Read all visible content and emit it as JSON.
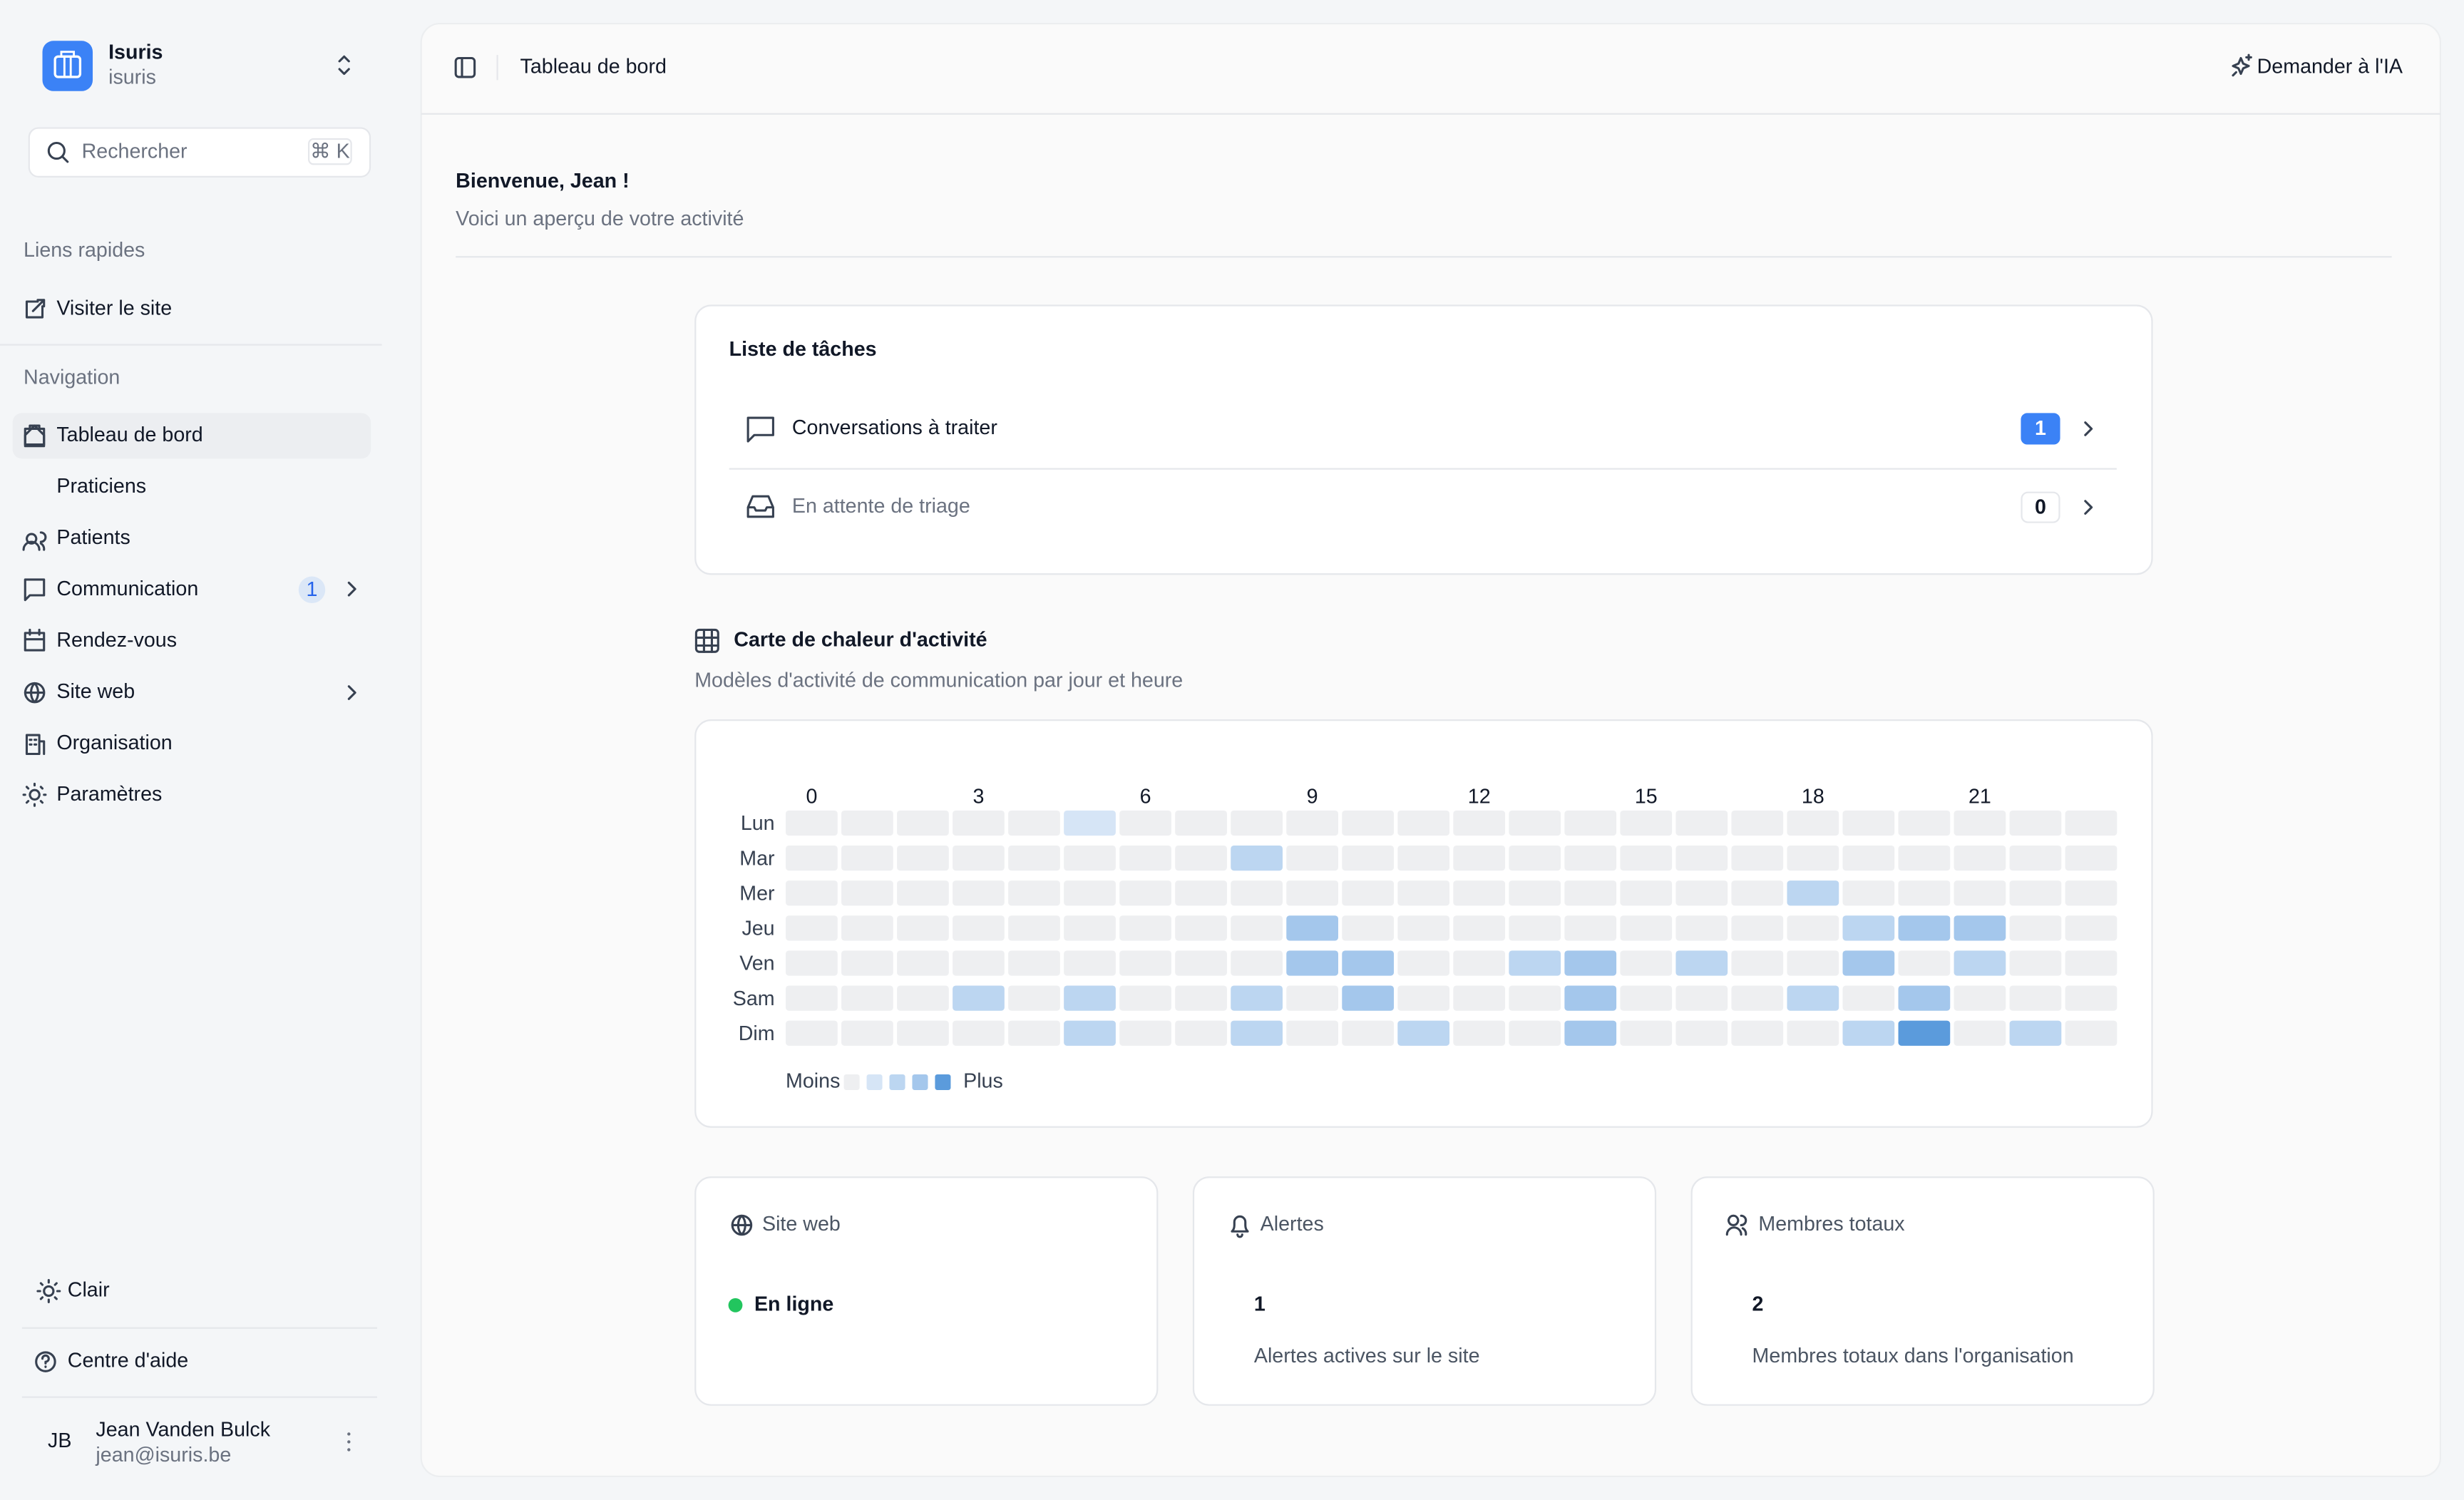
{
  "sidebar": {
    "org_name": "Isuris",
    "org_slug": "isuris",
    "search_placeholder": "Rechercher",
    "search_shortcut": "⌘ K",
    "quick_links_title": "Liens rapides",
    "quick_links": [
      "Visiter le site"
    ],
    "nav_title": "Navigation",
    "nav": [
      {
        "label": "Tableau de bord"
      },
      {
        "label": "Praticiens"
      },
      {
        "label": "Patients"
      },
      {
        "label": "Communication",
        "badge": 1
      },
      {
        "label": "Rendez-vous"
      },
      {
        "label": "Site web"
      },
      {
        "label": "Organisation"
      },
      {
        "label": "Paramètres"
      }
    ],
    "theme": "Clair",
    "help": "Centre d'aide",
    "user": {
      "initials": "JB",
      "name": "Jean Vanden Bulck",
      "email": "jean@isuris.be"
    }
  },
  "header": {
    "breadcrumb": "Tableau de bord",
    "ask_ai": "Demander à l'IA"
  },
  "welcome": {
    "title": "Bienvenue, Jean !",
    "subtitle": "Voici un aperçu de votre activité"
  },
  "tasks": {
    "title": "Liste de tâches",
    "items": [
      {
        "label": "Conversations à traiter",
        "count": 1
      },
      {
        "label": "En attente de triage",
        "count": 0
      }
    ]
  },
  "heatmap": {
    "title": "Carte de chaleur d'activité",
    "subtitle": "Modèles d'activité de communication par jour et heure",
    "hours": [
      0,
      3,
      6,
      9,
      12,
      15,
      18,
      21
    ],
    "days": [
      "Lun",
      "Mar",
      "Mer",
      "Jeu",
      "Ven",
      "Sam",
      "Dim"
    ],
    "colors": [
      "#eeeff1",
      "#d6e5f6",
      "#bcd6f1",
      "#a4c7ec",
      "#5b9bdc"
    ],
    "levels": [
      [
        0,
        0,
        0,
        0,
        0,
        1,
        0,
        0,
        0,
        0,
        0,
        0,
        0,
        0,
        0,
        0,
        0,
        0,
        0,
        0,
        0,
        0,
        0,
        0
      ],
      [
        0,
        0,
        0,
        0,
        0,
        0,
        0,
        0,
        2,
        0,
        0,
        0,
        0,
        0,
        0,
        0,
        0,
        0,
        0,
        0,
        0,
        0,
        0,
        0
      ],
      [
        0,
        0,
        0,
        0,
        0,
        0,
        0,
        0,
        0,
        0,
        0,
        0,
        0,
        0,
        0,
        0,
        0,
        0,
        2,
        0,
        0,
        0,
        0,
        0
      ],
      [
        0,
        0,
        0,
        0,
        0,
        0,
        0,
        0,
        0,
        3,
        0,
        0,
        0,
        0,
        0,
        0,
        0,
        0,
        0,
        2,
        3,
        3,
        0,
        0
      ],
      [
        0,
        0,
        0,
        0,
        0,
        0,
        0,
        0,
        0,
        3,
        3,
        0,
        0,
        2,
        3,
        0,
        2,
        0,
        0,
        3,
        0,
        2,
        0,
        0
      ],
      [
        0,
        0,
        0,
        2,
        0,
        2,
        0,
        0,
        2,
        0,
        3,
        0,
        0,
        0,
        3,
        0,
        0,
        0,
        2,
        0,
        3,
        0,
        0,
        0
      ],
      [
        0,
        0,
        0,
        0,
        0,
        2,
        0,
        0,
        2,
        0,
        0,
        2,
        0,
        0,
        3,
        0,
        0,
        0,
        0,
        2,
        4,
        0,
        2,
        0
      ]
    ],
    "legend_less": "Moins",
    "legend_more": "Plus"
  },
  "stats": [
    {
      "label": "Site web",
      "value": "En ligne"
    },
    {
      "label": "Alertes",
      "value": 1,
      "description": "Alertes actives sur le site"
    },
    {
      "label": "Membres totaux",
      "value": 2,
      "description": "Membres totaux dans l'organisation"
    }
  ]
}
